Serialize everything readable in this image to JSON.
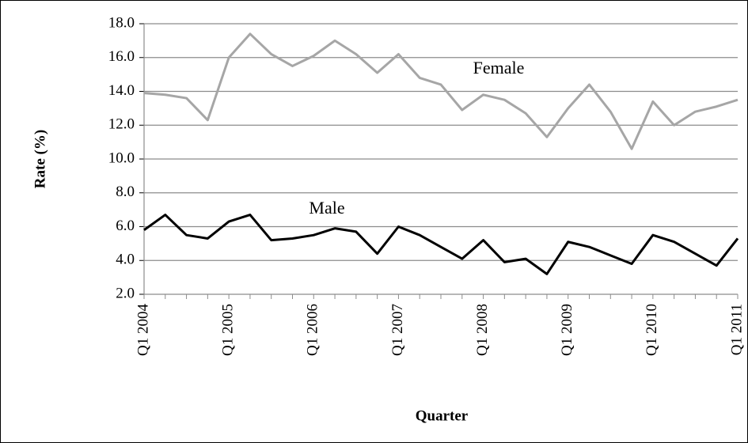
{
  "chart_data": {
    "type": "line",
    "x_label": "Quarter",
    "y_label": "Rate (%)",
    "categories": [
      "Q1 2004",
      null,
      null,
      null,
      "Q1 2005",
      null,
      null,
      null,
      "Q1 2006",
      null,
      null,
      null,
      "Q1 2007",
      null,
      null,
      null,
      "Q1 2008",
      null,
      null,
      null,
      "Q1 2009",
      null,
      null,
      null,
      "Q1 2010",
      null,
      null,
      null,
      "Q1 2011"
    ],
    "series": [
      {
        "name": "Female",
        "color": "#a6a6a6",
        "values": [
          13.9,
          13.8,
          13.6,
          12.3,
          16.0,
          17.4,
          16.2,
          15.5,
          16.1,
          17.0,
          16.2,
          15.1,
          16.2,
          14.8,
          14.4,
          12.9,
          13.8,
          13.5,
          12.7,
          11.3,
          13.0,
          14.4,
          12.8,
          10.6,
          13.4,
          12.0,
          12.8,
          13.1,
          13.5
        ]
      },
      {
        "name": "Male",
        "color": "#000000",
        "values": [
          5.8,
          6.7,
          5.5,
          5.3,
          6.3,
          6.7,
          5.2,
          5.3,
          5.5,
          5.9,
          5.7,
          4.4,
          6.0,
          5.5,
          4.8,
          4.1,
          5.2,
          3.9,
          4.1,
          3.2,
          5.1,
          4.8,
          4.3,
          3.8,
          5.5,
          5.1,
          4.4,
          3.7,
          5.3
        ]
      }
    ],
    "ylim": [
      2,
      18
    ],
    "yticks": [
      {
        "value": 2,
        "label": "2.0"
      },
      {
        "value": 4,
        "label": "4.0"
      },
      {
        "value": 6,
        "label": "6.0"
      },
      {
        "value": 8,
        "label": "8.0"
      },
      {
        "value": 10,
        "label": "10.0"
      },
      {
        "value": 12,
        "label": "12.0"
      },
      {
        "value": 14,
        "label": "14.0"
      },
      {
        "value": 16,
        "label": "16.0"
      },
      {
        "value": 18,
        "label": "18.0"
      }
    ],
    "grid": true
  }
}
